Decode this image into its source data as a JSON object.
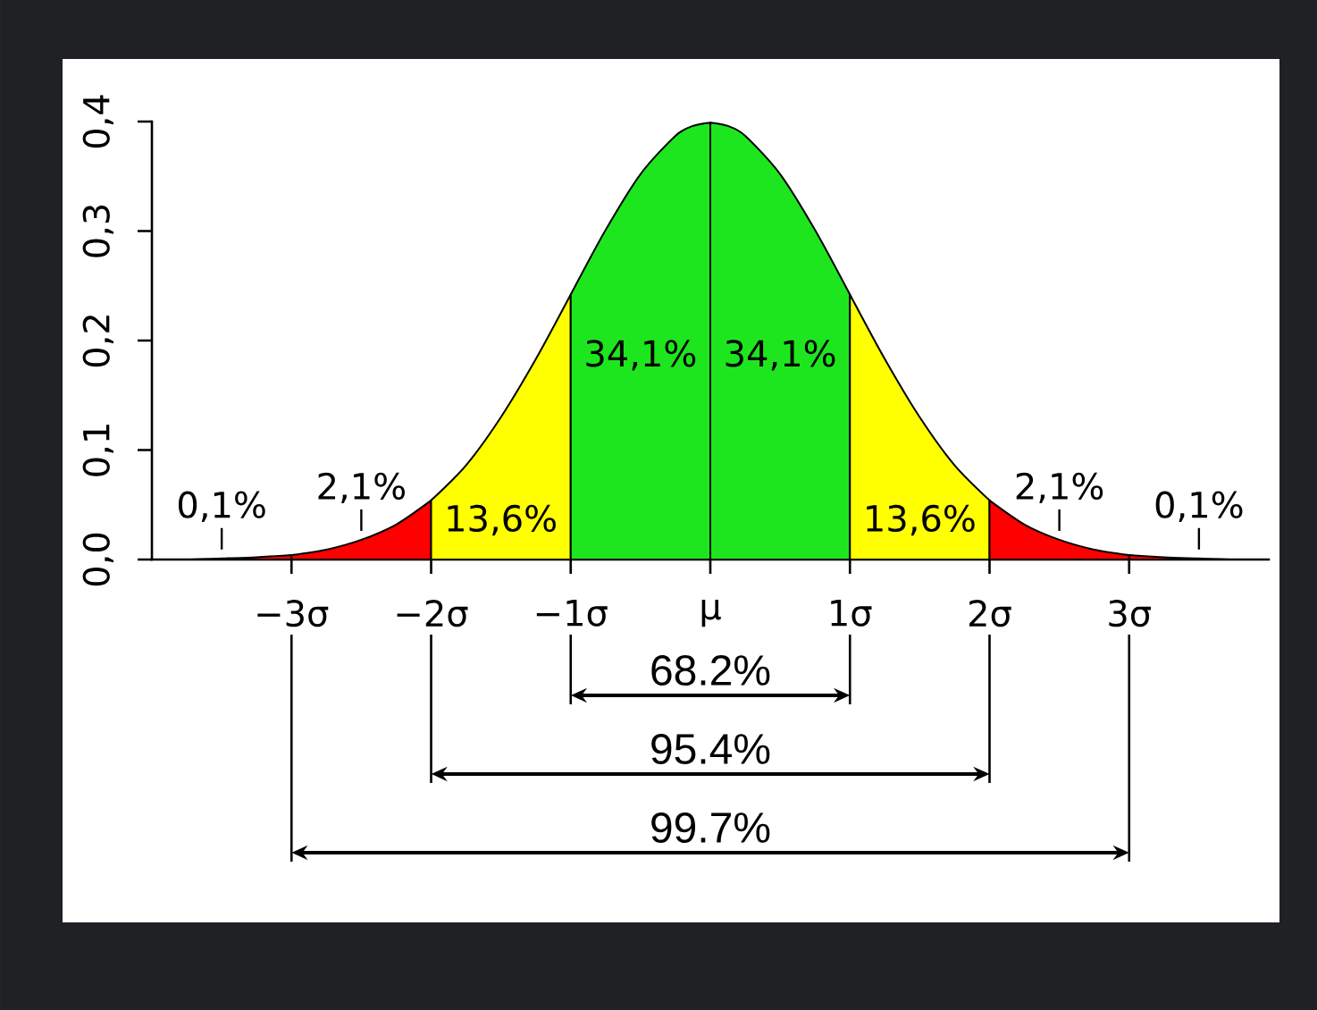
{
  "chart_data": {
    "type": "area",
    "xlim": [
      -4,
      4
    ],
    "ylim": [
      0,
      0.4
    ],
    "xticks": [
      {
        "value": -3,
        "label": "−3σ"
      },
      {
        "value": -2,
        "label": "−2σ"
      },
      {
        "value": -1,
        "label": "−1σ"
      },
      {
        "value": 0,
        "label": "μ"
      },
      {
        "value": 1,
        "label": "1σ"
      },
      {
        "value": 2,
        "label": "2σ"
      },
      {
        "value": 3,
        "label": "3σ"
      }
    ],
    "yticks": [
      {
        "value": 0,
        "label": "0,0"
      },
      {
        "value": 0.1,
        "label": "0,1"
      },
      {
        "value": 0.2,
        "label": "0,2"
      },
      {
        "value": 0.3,
        "label": "0,3"
      },
      {
        "value": 0.4,
        "label": "0,4"
      }
    ],
    "series": [
      {
        "color": "#ff0000",
        "x": [
          -4,
          -3.75,
          -3.5,
          -3.25,
          -3
        ],
        "values": [
          0,
          0,
          0.001,
          0.002,
          0.004
        ]
      },
      {
        "color": "#ff0000",
        "x": [
          -3,
          -2.75,
          -2.5,
          -2.25,
          -2
        ],
        "values": [
          0.004,
          0.009,
          0.018,
          0.032,
          0.054
        ]
      },
      {
        "color": "#ffff00",
        "x": [
          -2,
          -1.75,
          -1.5,
          -1.25,
          -1
        ],
        "values": [
          0.054,
          0.086,
          0.13,
          0.183,
          0.242
        ]
      },
      {
        "color": "#1ee61e",
        "x": [
          -1,
          -0.75,
          -0.5,
          -0.25,
          -0.125,
          0
        ],
        "values": [
          0.242,
          0.301,
          0.352,
          0.387,
          0.396,
          0.399
        ]
      },
      {
        "color": "#1ee61e",
        "x": [
          0,
          0.125,
          0.25,
          0.5,
          0.75,
          1
        ],
        "values": [
          0.399,
          0.396,
          0.387,
          0.352,
          0.301,
          0.242
        ]
      },
      {
        "color": "#ffff00",
        "x": [
          1,
          1.25,
          1.5,
          1.75,
          2
        ],
        "values": [
          0.242,
          0.183,
          0.13,
          0.086,
          0.054
        ]
      },
      {
        "color": "#ff0000",
        "x": [
          2,
          2.25,
          2.5,
          2.75,
          3
        ],
        "values": [
          0.054,
          0.032,
          0.018,
          0.009,
          0.004
        ]
      },
      {
        "color": "#ff0000",
        "x": [
          3,
          3.25,
          3.5,
          3.75,
          4
        ],
        "values": [
          0.004,
          0.002,
          0.001,
          0,
          0
        ]
      }
    ],
    "annotations": [
      "0,1%",
      "2,1%",
      "13,6%",
      "34,1%",
      "34,1%",
      "13,6%",
      "2,1%",
      "0,1%",
      "68.2%",
      "95.4%",
      "99.7%"
    ]
  }
}
